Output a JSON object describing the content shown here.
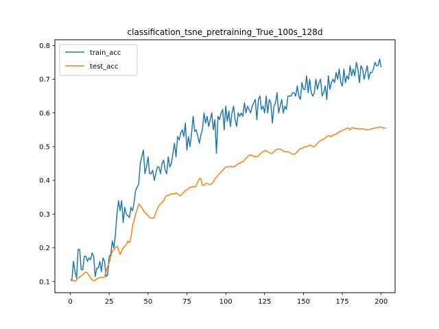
{
  "chart_data": {
    "type": "line",
    "title": "classification_tsne_pretraining_True_100s_128d",
    "xlabel": "",
    "ylabel": "",
    "xlim": [
      -9.95,
      208.95
    ],
    "ylim": [
      0.067,
      0.817
    ],
    "xticks": [
      0,
      25,
      50,
      75,
      100,
      125,
      150,
      175,
      200
    ],
    "yticks": [
      0.1,
      0.2,
      0.3,
      0.4,
      0.5,
      0.6,
      0.7,
      0.8
    ],
    "xtick_labels": [
      "0",
      "25",
      "50",
      "75",
      "100",
      "125",
      "150",
      "175",
      "200"
    ],
    "ytick_labels": [
      "0.1",
      "0.2",
      "0.3",
      "0.4",
      "0.5",
      "0.6",
      "0.7",
      "0.8"
    ],
    "grid": false,
    "legend_position": "upper-left",
    "series": [
      {
        "name": "train_acc",
        "color": "#1f77b4",
        "x_start": 0,
        "x_step": 1,
        "values": [
          0.105,
          0.105,
          0.16,
          0.13,
          0.11,
          0.195,
          0.195,
          0.135,
          0.135,
          0.175,
          0.175,
          0.16,
          0.17,
          0.165,
          0.185,
          0.175,
          0.115,
          0.14,
          0.14,
          0.16,
          0.13,
          0.17,
          0.16,
          0.115,
          0.12,
          0.175,
          0.18,
          0.22,
          0.2,
          0.24,
          0.3,
          0.34,
          0.31,
          0.34,
          0.275,
          0.32,
          0.3,
          0.295,
          0.29,
          0.32,
          0.31,
          0.335,
          0.37,
          0.38,
          0.39,
          0.45,
          0.47,
          0.49,
          0.42,
          0.44,
          0.47,
          0.42,
          0.42,
          0.43,
          0.4,
          0.42,
          0.44,
          0.44,
          0.42,
          0.45,
          0.46,
          0.43,
          0.42,
          0.47,
          0.44,
          0.45,
          0.48,
          0.51,
          0.47,
          0.53,
          0.52,
          0.54,
          0.55,
          0.53,
          0.57,
          0.49,
          0.53,
          0.5,
          0.54,
          0.59,
          0.545,
          0.55,
          0.53,
          0.51,
          0.535,
          0.55,
          0.6,
          0.57,
          0.59,
          0.56,
          0.58,
          0.6,
          0.55,
          0.58,
          0.48,
          0.59,
          0.58,
          0.6,
          0.61,
          0.55,
          0.62,
          0.575,
          0.605,
          0.56,
          0.6,
          0.62,
          0.58,
          0.56,
          0.6,
          0.59,
          0.6,
          0.59,
          0.63,
          0.6,
          0.62,
          0.61,
          0.6,
          0.62,
          0.63,
          0.64,
          0.58,
          0.64,
          0.65,
          0.61,
          0.62,
          0.6,
          0.65,
          0.6,
          0.64,
          0.63,
          0.57,
          0.62,
          0.63,
          0.66,
          0.6,
          0.62,
          0.64,
          0.6,
          0.62,
          0.61,
          0.65,
          0.65,
          0.65,
          0.66,
          0.66,
          0.65,
          0.68,
          0.65,
          0.64,
          0.69,
          0.67,
          0.67,
          0.71,
          0.66,
          0.7,
          0.66,
          0.65,
          0.66,
          0.7,
          0.67,
          0.69,
          0.7,
          0.65,
          0.66,
          0.68,
          0.64,
          0.71,
          0.67,
          0.69,
          0.7,
          0.69,
          0.72,
          0.7,
          0.73,
          0.69,
          0.68,
          0.73,
          0.69,
          0.71,
          0.7,
          0.74,
          0.71,
          0.73,
          0.71,
          0.75,
          0.73,
          0.69,
          0.74,
          0.73,
          0.7,
          0.72,
          0.74,
          0.7,
          0.72,
          0.72,
          0.73,
          0.75,
          0.74,
          0.74,
          0.76,
          0.735
        ]
      },
      {
        "name": "test_acc",
        "color": "#ff7f0e",
        "x_start": 0,
        "x_step": 1,
        "values": [
          0.105,
          0.102,
          0.103,
          0.101,
          0.105,
          0.11,
          0.114,
          0.117,
          0.12,
          0.125,
          0.128,
          0.125,
          0.118,
          0.112,
          0.105,
          0.102,
          0.104,
          0.108,
          0.11,
          0.112,
          0.113,
          0.112,
          0.114,
          0.13,
          0.145,
          0.155,
          0.175,
          0.19,
          0.195,
          0.2,
          0.205,
          0.195,
          0.18,
          0.19,
          0.2,
          0.205,
          0.21,
          0.22,
          0.215,
          0.23,
          0.265,
          0.28,
          0.3,
          0.315,
          0.33,
          0.325,
          0.32,
          0.31,
          0.305,
          0.3,
          0.295,
          0.29,
          0.288,
          0.288,
          0.29,
          0.305,
          0.315,
          0.325,
          0.33,
          0.335,
          0.34,
          0.35,
          0.355,
          0.355,
          0.358,
          0.36,
          0.36,
          0.36,
          0.363,
          0.36,
          0.355,
          0.355,
          0.36,
          0.365,
          0.37,
          0.372,
          0.375,
          0.38,
          0.38,
          0.382,
          0.38,
          0.385,
          0.395,
          0.405,
          0.405,
          0.385,
          0.385,
          0.39,
          0.392,
          0.388,
          0.388,
          0.39,
          0.395,
          0.405,
          0.41,
          0.415,
          0.42,
          0.425,
          0.43,
          0.435,
          0.44,
          0.44,
          0.44,
          0.442,
          0.44,
          0.44,
          0.442,
          0.445,
          0.45,
          0.45,
          0.455,
          0.455,
          0.46,
          0.465,
          0.47,
          0.475,
          0.475,
          0.473,
          0.472,
          0.47,
          0.47,
          0.472,
          0.478,
          0.482,
          0.485,
          0.488,
          0.488,
          0.485,
          0.482,
          0.48,
          0.48,
          0.485,
          0.49,
          0.492,
          0.493,
          0.493,
          0.49,
          0.487,
          0.485,
          0.485,
          0.485,
          0.483,
          0.48,
          0.478,
          0.478,
          0.48,
          0.485,
          0.49,
          0.495,
          0.495,
          0.497,
          0.5,
          0.5,
          0.502,
          0.505,
          0.503,
          0.5,
          0.5,
          0.505,
          0.51,
          0.515,
          0.518,
          0.52,
          0.522,
          0.525,
          0.53,
          0.532,
          0.532,
          0.53,
          0.535,
          0.535,
          0.538,
          0.54,
          0.545,
          0.545,
          0.548,
          0.55,
          0.552,
          0.555,
          0.555,
          0.55,
          0.555,
          0.556,
          0.554,
          0.553,
          0.554,
          0.552,
          0.553,
          0.553,
          0.552,
          0.551,
          0.55,
          0.551,
          0.552,
          0.553,
          0.554,
          0.555,
          0.556,
          0.557,
          0.558,
          0.558,
          0.556,
          0.555,
          0.555
        ]
      }
    ]
  }
}
